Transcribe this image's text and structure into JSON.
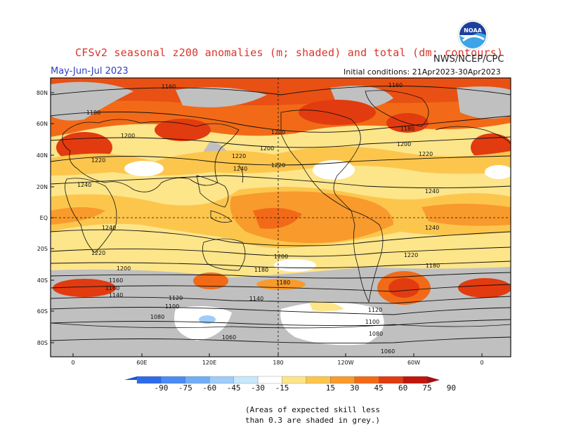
{
  "header": {
    "title": "CFSv2 seasonal z200 anomalies (m; shaded) and total (dm; contours)",
    "agency": "NWS/NCEP/CPC",
    "season": "May-Jun-Jul 2023",
    "initial_conditions": "Initial conditions: 21Apr2023-30Apr2023",
    "logo_text": "NOAA"
  },
  "map": {
    "lat_labels": [
      "80N",
      "60N",
      "40N",
      "20N",
      "EQ",
      "20S",
      "40S",
      "60S",
      "80S"
    ],
    "lon_labels": [
      "0",
      "60E",
      "120E",
      "180",
      "120W",
      "60W",
      "0"
    ],
    "contour_labels": [
      "1160",
      "1160",
      "1180",
      "1180",
      "1200",
      "1200",
      "1200",
      "1200",
      "1220",
      "1220",
      "1220",
      "1220",
      "1240",
      "1240",
      "1240",
      "1240",
      "1240",
      "1220",
      "1220",
      "1200",
      "1200",
      "1180",
      "1180",
      "1180",
      "1160",
      "1160",
      "1140",
      "1140",
      "1120",
      "1120",
      "1100",
      "1100",
      "1080",
      "1080",
      "1060",
      "1060"
    ],
    "skill_mask_color": "#c0c0c0"
  },
  "colorbar": {
    "ticks": [
      "-90",
      "-75",
      "-60",
      "-45",
      "-30",
      "-15",
      "15",
      "30",
      "45",
      "60",
      "75",
      "90"
    ],
    "colors": [
      "#1f4fd6",
      "#2e6bea",
      "#4a8cf2",
      "#72aef6",
      "#9fcdf9",
      "#c7e8fb",
      "#ffffff",
      "#fde58a",
      "#fcc64d",
      "#f99a2c",
      "#f26a17",
      "#e23b10",
      "#c0160c",
      "#a50e0e"
    ]
  },
  "footnote": {
    "line1": "(Areas of expected skill less",
    "line2": "than 0.3 are shaded in grey.)"
  }
}
